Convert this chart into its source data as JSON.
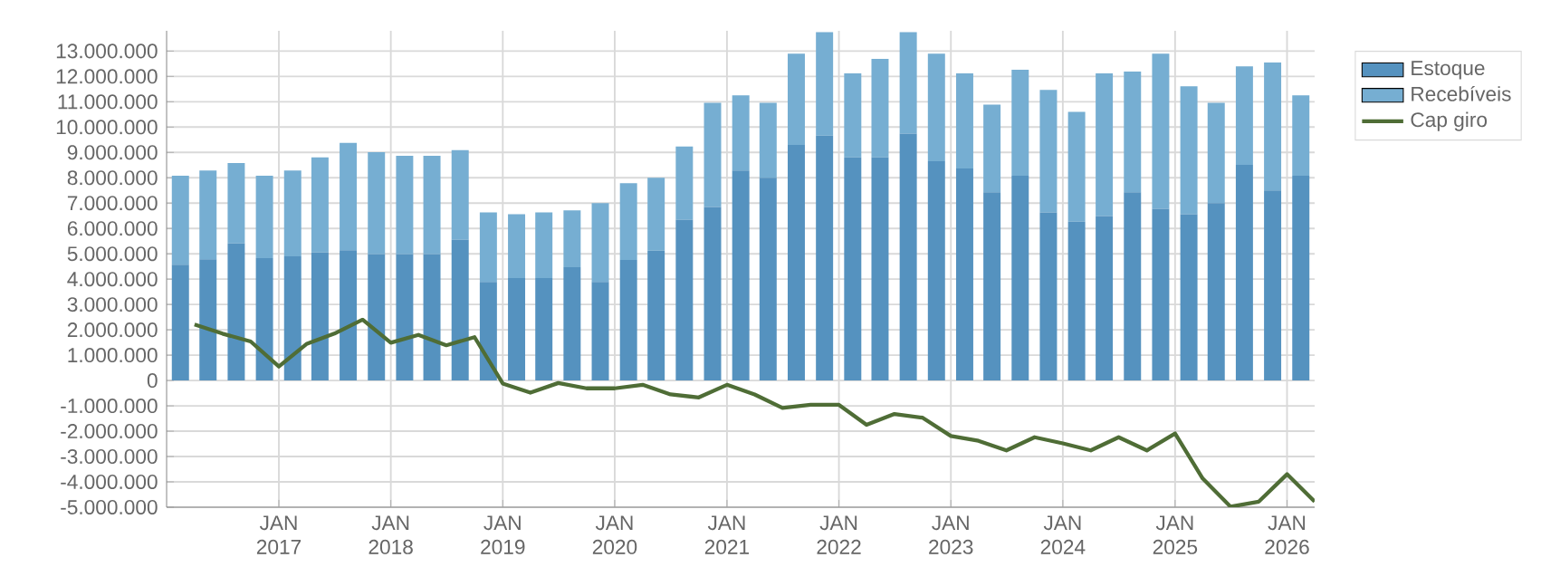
{
  "chart_data": {
    "type": "bar",
    "stacked": true,
    "grid": true,
    "legend": "top right",
    "xlim": [
      "2016-01-01",
      "2026-04-01"
    ],
    "xticks": [
      {
        "value": "2017-01-01",
        "label": "JAN 2017"
      },
      {
        "value": "2018-01-01",
        "label": "JAN 2018"
      },
      {
        "value": "2019-01-01",
        "label": "JAN 2019"
      },
      {
        "value": "2020-01-01",
        "label": "JAN 2020"
      },
      {
        "value": "2021-01-01",
        "label": "JAN 2021"
      },
      {
        "value": "2022-01-01",
        "label": "JAN 2022"
      },
      {
        "value": "2023-01-01",
        "label": "JAN 2023"
      },
      {
        "value": "2024-01-01",
        "label": "JAN 2024"
      },
      {
        "value": "2025-01-01",
        "label": "JAN 2025"
      },
      {
        "value": "2026-01-01",
        "label": "JAN 2026"
      }
    ],
    "ylim": [
      -5000000,
      13800000
    ],
    "yticks": [
      {
        "value": -5000000,
        "label": "-5.000.000"
      },
      {
        "value": -4000000,
        "label": "-4.000.000"
      },
      {
        "value": -3000000,
        "label": "-3.000.000"
      },
      {
        "value": -2000000,
        "label": "-2.000.000"
      },
      {
        "value": -1000000,
        "label": "-1.000.000"
      },
      0,
      {
        "value": 1000000,
        "label": "1.000.000"
      },
      {
        "value": 2000000,
        "label": "2.000.000"
      },
      {
        "value": 3000000,
        "label": "3.000.000"
      },
      {
        "value": 4000000,
        "label": "4.000.000"
      },
      {
        "value": 5000000,
        "label": "5.000.000"
      },
      {
        "value": 6000000,
        "label": "6.000.000"
      },
      {
        "value": 7000000,
        "label": "7.000.000"
      },
      {
        "value": 8000000,
        "label": "8.000.000"
      },
      {
        "value": 9000000,
        "label": "9.000.000"
      },
      {
        "value": 10000000,
        "label": "10.000.000"
      },
      {
        "value": 11000000,
        "label": "11.000.000"
      },
      {
        "value": 12000000,
        "label": "12.000.000"
      },
      {
        "value": 13000000,
        "label": "13.000.000"
      }
    ],
    "series": [
      {
        "name": "Estoque",
        "color": "#5592bf",
        "x": [
          "2016-02-15",
          "2016-05-15",
          "2016-08-15",
          "2016-11-15",
          "2017-02-15",
          "2017-05-15",
          "2017-08-15",
          "2017-11-15",
          "2018-02-15",
          "2018-05-15",
          "2018-08-15",
          "2018-11-15",
          "2019-02-15",
          "2019-05-15",
          "2019-08-15",
          "2019-11-15",
          "2020-02-15",
          "2020-05-15",
          "2020-08-15",
          "2020-11-15",
          "2021-02-15",
          "2021-05-15",
          "2021-08-15",
          "2021-11-15",
          "2022-02-15",
          "2022-05-15",
          "2022-08-15",
          "2022-11-15",
          "2023-02-15",
          "2023-05-15",
          "2023-08-15",
          "2023-11-15",
          "2024-02-15",
          "2024-05-15",
          "2024-08-15",
          "2024-11-15",
          "2025-02-15",
          "2025-05-15",
          "2025-08-15",
          "2025-11-15",
          "2026-02-15"
        ],
        "values": [
          4570000,
          4780000,
          5410000,
          4830000,
          4900000,
          5050000,
          5140000,
          4980000,
          4980000,
          4980000,
          5550000,
          3890000,
          4040000,
          4040000,
          4470000,
          3890000,
          4760000,
          5120000,
          6350000,
          6850000,
          8290000,
          8000000,
          9300000,
          9660000,
          8800000,
          8800000,
          9740000,
          8650000,
          8370000,
          7430000,
          8080000,
          6630000,
          6270000,
          6490000,
          7430000,
          6780000,
          6560000,
          7000000,
          8510000,
          7500000,
          8080000
        ]
      },
      {
        "name": "Recebíveis",
        "color": "#76aed2",
        "x": [
          "2016-02-15",
          "2016-05-15",
          "2016-08-15",
          "2016-11-15",
          "2017-02-15",
          "2017-05-15",
          "2017-08-15",
          "2017-11-15",
          "2018-02-15",
          "2018-05-15",
          "2018-08-15",
          "2018-11-15",
          "2019-02-15",
          "2019-05-15",
          "2019-08-15",
          "2019-11-15",
          "2020-02-15",
          "2020-05-15",
          "2020-08-15",
          "2020-11-15",
          "2021-02-15",
          "2021-05-15",
          "2021-08-15",
          "2021-11-15",
          "2022-02-15",
          "2022-05-15",
          "2022-08-15",
          "2022-11-15",
          "2023-02-15",
          "2023-05-15",
          "2023-08-15",
          "2023-11-15",
          "2024-02-15",
          "2024-05-15",
          "2024-08-15",
          "2024-11-15",
          "2025-02-15",
          "2025-05-15",
          "2025-08-15",
          "2025-11-15",
          "2026-02-15"
        ],
        "values": [
          3510000,
          3510000,
          3170000,
          3250000,
          3390000,
          3750000,
          4240000,
          4030000,
          3890000,
          3890000,
          3540000,
          2740000,
          2520000,
          2590000,
          2240000,
          3110000,
          3030000,
          2880000,
          2880000,
          4110000,
          2960000,
          2960000,
          3600000,
          4090000,
          3320000,
          3890000,
          4010000,
          4250000,
          3750000,
          3460000,
          4180000,
          4840000,
          4330000,
          5630000,
          4760000,
          6120000,
          5050000,
          3960000,
          3890000,
          5050000,
          3170000
        ]
      },
      {
        "name": "Cap giro",
        "type": "line",
        "color": "#4f6d36",
        "x": [
          "2016-04",
          "2016-07",
          "2016-10",
          "2017-01",
          "2017-04",
          "2017-07",
          "2017-10",
          "2018-01",
          "2018-04",
          "2018-07",
          "2018-10",
          "2019-01",
          "2019-04",
          "2019-07",
          "2019-10",
          "2020-01",
          "2020-04",
          "2020-07",
          "2020-10",
          "2021-01",
          "2021-04",
          "2021-07",
          "2021-10",
          "2022-01",
          "2022-04",
          "2022-07",
          "2022-10",
          "2023-01",
          "2023-04",
          "2023-07",
          "2023-10",
          "2024-01",
          "2024-04",
          "2024-07",
          "2024-10",
          "2025-01",
          "2025-04",
          "2025-07",
          "2025-10",
          "2026-01",
          "2026-04"
        ],
        "values": [
          2210000,
          1850000,
          1540000,
          550000,
          1440000,
          1850000,
          2400000,
          1490000,
          1800000,
          1390000,
          1710000,
          -120000,
          -480000,
          -100000,
          -310000,
          -310000,
          -170000,
          -550000,
          -670000,
          -170000,
          -550000,
          -1080000,
          -960000,
          -960000,
          -1750000,
          -1320000,
          -1470000,
          -2190000,
          -2380000,
          -2760000,
          -2240000,
          -2480000,
          -2760000,
          -2240000,
          -2760000,
          -2090000,
          -3870000,
          -4980000,
          -4780000,
          -3700000,
          -4780000
        ]
      }
    ]
  }
}
